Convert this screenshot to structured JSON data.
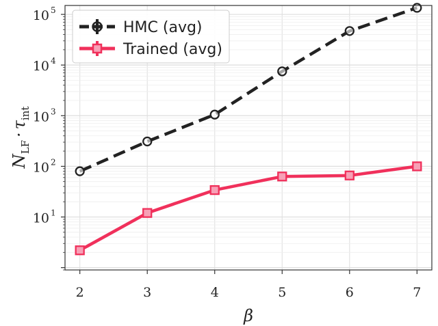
{
  "chart_data": {
    "type": "line",
    "x": [
      2,
      3,
      4,
      5,
      6,
      7
    ],
    "xticks": [
      "2",
      "3",
      "4",
      "5",
      "6",
      "7"
    ],
    "xlim": [
      1.78,
      7.22
    ],
    "xlabel": "β",
    "ylabel_main": "N",
    "ylabel_sub": "LF",
    "ylabel_dot": "·",
    "ylabel_tau": "τ",
    "ylabel_tau_sub": "int",
    "yscale": "log",
    "ylim": [
      0.9,
      150000
    ],
    "yticks": [
      {
        "value": 10,
        "base": "10",
        "exp": "1"
      },
      {
        "value": 100,
        "base": "10",
        "exp": "2"
      },
      {
        "value": 1000,
        "base": "10",
        "exp": "3"
      },
      {
        "value": 10000,
        "base": "10",
        "exp": "4"
      },
      {
        "value": 100000,
        "base": "10",
        "exp": "5"
      }
    ],
    "grid": true,
    "legend_position": "top-left",
    "series": [
      {
        "name": "HMC (avg)",
        "values": [
          80,
          310,
          1050,
          7500,
          47000,
          135000
        ],
        "color": "#222222",
        "dash": "dashed",
        "marker": "circle"
      },
      {
        "name": "Trained (avg)",
        "values": [
          2.2,
          12,
          34,
          63,
          66,
          100
        ],
        "color": "#f0305b",
        "dash": "solid",
        "marker": "square"
      }
    ]
  }
}
